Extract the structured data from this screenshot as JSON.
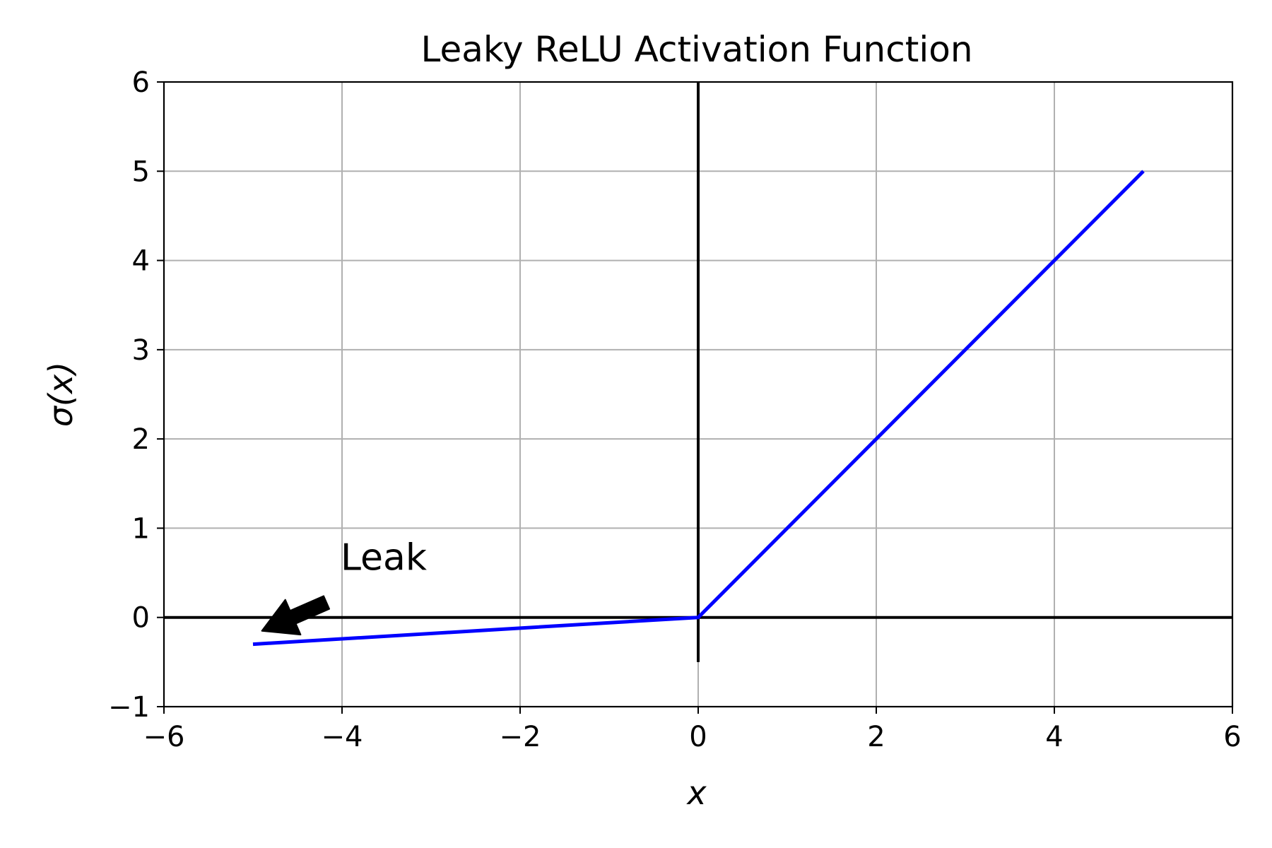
{
  "chart_data": {
    "type": "line",
    "title": "Leaky ReLU Activation Function",
    "xlabel": "x",
    "ylabel": "σ(x)",
    "xlim": [
      -6,
      6
    ],
    "ylim": [
      -1,
      6
    ],
    "xticks": [
      -6,
      -4,
      -2,
      0,
      2,
      4,
      6
    ],
    "yticks": [
      -1,
      0,
      1,
      2,
      3,
      4,
      5,
      6
    ],
    "xtick_labels": [
      "−6",
      "−4",
      "−2",
      "0",
      "2",
      "4",
      "6"
    ],
    "ytick_labels": [
      "−1",
      "0",
      "1",
      "2",
      "3",
      "4",
      "5",
      "6"
    ],
    "grid": true,
    "series": [
      {
        "color": "#0000ff",
        "x": [
          -5,
          0,
          5
        ],
        "y": [
          -0.3,
          0,
          5
        ]
      }
    ],
    "reference_lines": [
      {
        "orientation": "horizontal",
        "y": 0,
        "x_range": [
          -6,
          6
        ],
        "color": "#000000"
      },
      {
        "orientation": "vertical",
        "x": 0,
        "y_range": [
          -0.5,
          6
        ],
        "color": "#000000"
      }
    ],
    "annotations": [
      {
        "text": "Leak",
        "text_x": -4,
        "text_y": 0.5,
        "arrow_to": [
          -4.9,
          -0.15
        ],
        "color": "#000000"
      }
    ]
  }
}
